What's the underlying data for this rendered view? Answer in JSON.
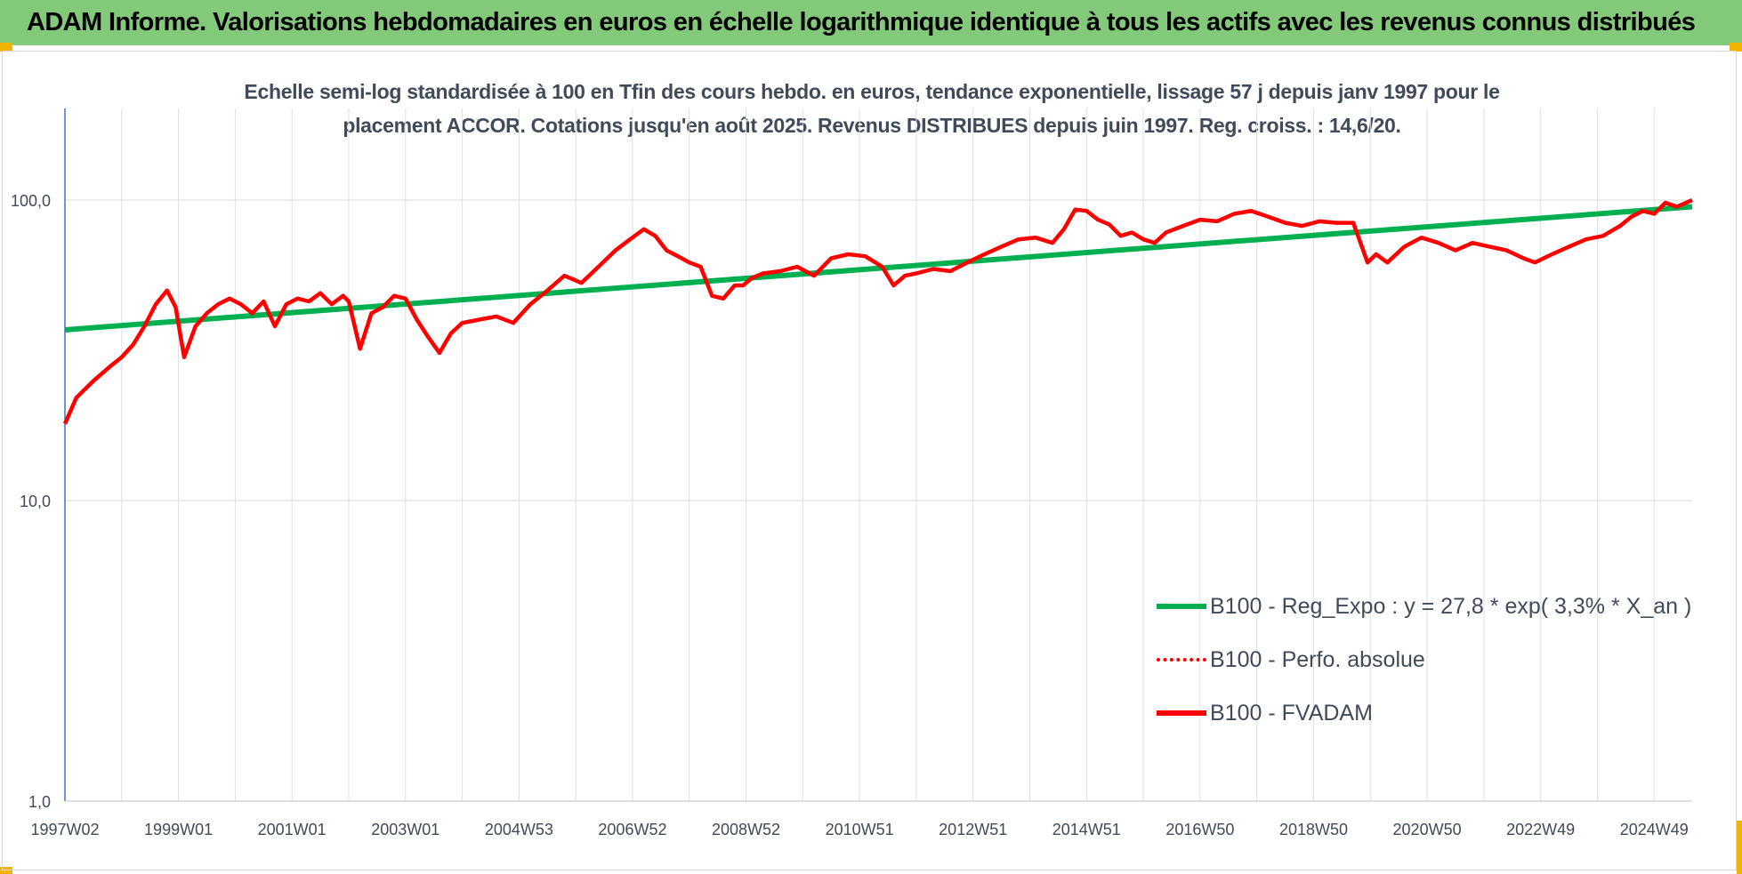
{
  "banner": {
    "title": "ADAM Informe. Valorisations hebdomadaires en euros en échelle logarithmique identique à tous les actifs avec les revenus connus distribués",
    "bg_color": "#83c97a",
    "corner_color": "#f0b400"
  },
  "chart_data": {
    "type": "line",
    "title_line1": "Echelle semi-log standardisée à 100 en Tfin des cours hebdo. en euros, tendance exponentielle, lissage 57 j depuis janv 1997 pour le",
    "title_line2": "placement ACCOR. Cotations jusqu'en août 2025. Revenus DISTRIBUES depuis juin 1997. Reg. croiss. : 14,6/20.",
    "y_scale": "log",
    "ylim": [
      1,
      200
    ],
    "y_ticks": [
      {
        "value": 100,
        "label": "100,0"
      },
      {
        "value": 10,
        "label": "10,0"
      },
      {
        "value": 1,
        "label": "1,0"
      }
    ],
    "xlim": [
      1997.0,
      2025.67
    ],
    "x_ticks": [
      {
        "value": 1997.0,
        "label": "1997W02"
      },
      {
        "value": 1999.0,
        "label": "1999W01"
      },
      {
        "value": 2001.0,
        "label": "2001W01"
      },
      {
        "value": 2003.0,
        "label": "2003W01"
      },
      {
        "value": 2005.0,
        "label": "2004W53"
      },
      {
        "value": 2007.0,
        "label": "2006W52"
      },
      {
        "value": 2009.0,
        "label": "2008W52"
      },
      {
        "value": 2011.0,
        "label": "2010W51"
      },
      {
        "value": 2013.0,
        "label": "2012W51"
      },
      {
        "value": 2015.0,
        "label": "2014W51"
      },
      {
        "value": 2017.0,
        "label": "2016W50"
      },
      {
        "value": 2019.0,
        "label": "2018W50"
      },
      {
        "value": 2021.0,
        "label": "2020W50"
      },
      {
        "value": 2023.0,
        "label": "2022W49"
      },
      {
        "value": 2025.0,
        "label": "2024W49"
      }
    ],
    "grid": "vertical",
    "legend_position": "bottom-right",
    "series": [
      {
        "name": "B100 - Reg_Expo : y = 27,8 * exp( 3,3% *  X_an )",
        "color": "#00b050",
        "style": "solid",
        "x": [
          1997.0,
          2025.67
        ],
        "y": [
          37,
          95
        ]
      },
      {
        "name": "B100 - Perfo. absolue",
        "color": "#ff0000",
        "style": "dotted",
        "x": [],
        "y": []
      },
      {
        "name": "B100 - FVADAM",
        "color": "#ff0000",
        "style": "solid",
        "x": [
          1997.0,
          1997.2,
          1997.5,
          1997.8,
          1998.0,
          1998.2,
          1998.4,
          1998.6,
          1998.8,
          1998.95,
          1999.1,
          1999.3,
          1999.5,
          1999.7,
          1999.9,
          2000.1,
          2000.3,
          2000.5,
          2000.7,
          2000.9,
          2001.1,
          2001.3,
          2001.5,
          2001.7,
          2001.9,
          2002.0,
          2002.2,
          2002.4,
          2002.6,
          2002.8,
          2003.0,
          2003.2,
          2003.4,
          2003.6,
          2003.8,
          2004.0,
          2004.3,
          2004.6,
          2004.9,
          2005.2,
          2005.5,
          2005.8,
          2006.1,
          2006.4,
          2006.7,
          2007.0,
          2007.2,
          2007.4,
          2007.6,
          2007.8,
          2008.0,
          2008.2,
          2008.4,
          2008.6,
          2008.8,
          2008.95,
          2009.1,
          2009.3,
          2009.6,
          2009.9,
          2010.2,
          2010.5,
          2010.8,
          2011.1,
          2011.4,
          2011.6,
          2011.8,
          2012.0,
          2012.3,
          2012.6,
          2012.9,
          2013.2,
          2013.5,
          2013.8,
          2014.1,
          2014.4,
          2014.6,
          2014.8,
          2015.0,
          2015.2,
          2015.4,
          2015.6,
          2015.8,
          2016.0,
          2016.2,
          2016.4,
          2016.7,
          2017.0,
          2017.3,
          2017.6,
          2017.9,
          2018.2,
          2018.5,
          2018.8,
          2019.1,
          2019.4,
          2019.7,
          2019.95,
          2020.1,
          2020.3,
          2020.6,
          2020.9,
          2021.2,
          2021.5,
          2021.8,
          2022.1,
          2022.4,
          2022.7,
          2022.9,
          2023.2,
          2023.5,
          2023.8,
          2024.1,
          2024.4,
          2024.6,
          2024.8,
          2025.0,
          2025.2,
          2025.4,
          2025.67
        ],
        "y": [
          18,
          22,
          25,
          28,
          30,
          33,
          38,
          45,
          50,
          44,
          30,
          38,
          42,
          45,
          47,
          45,
          42,
          46,
          38,
          45,
          47,
          46,
          49,
          45,
          48,
          46,
          32,
          42,
          44,
          48,
          47,
          40,
          35,
          31,
          36,
          39,
          40,
          41,
          39,
          45,
          50,
          56,
          53,
          60,
          68,
          75,
          80,
          76,
          68,
          65,
          62,
          60,
          48,
          47,
          52,
          52,
          55,
          57,
          58,
          60,
          56,
          64,
          66,
          65,
          60,
          52,
          56,
          57,
          59,
          58,
          62,
          66,
          70,
          74,
          75,
          72,
          80,
          93,
          92,
          86,
          83,
          76,
          78,
          74,
          72,
          78,
          82,
          86,
          85,
          90,
          92,
          88,
          84,
          82,
          85,
          84,
          84,
          62,
          66,
          62,
          70,
          75,
          72,
          68,
          72,
          70,
          68,
          64,
          62,
          66,
          70,
          74,
          76,
          82,
          88,
          92,
          90,
          98,
          95,
          100
        ]
      }
    ]
  }
}
